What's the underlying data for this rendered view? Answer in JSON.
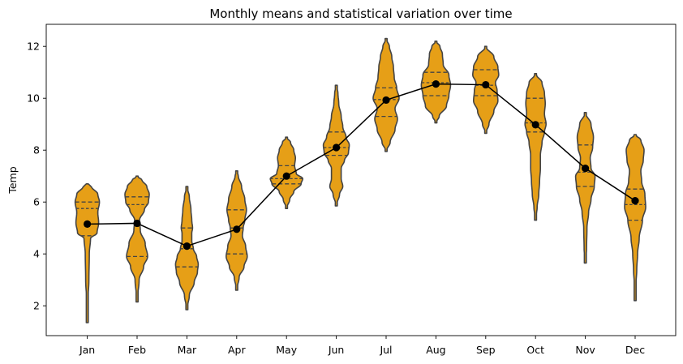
{
  "chart_data": {
    "type": "violin",
    "title": "Monthly means and statistical variation over time",
    "xlabel": "",
    "ylabel": "Temp",
    "ylim": [
      0.85,
      12.85
    ],
    "yticks": [
      2,
      4,
      6,
      8,
      10,
      12
    ],
    "grid": false,
    "colors": {
      "violin_fill": "#E69F17",
      "violin_edge": "#444444",
      "mean_line": "#000000"
    },
    "categories": [
      "Jan",
      "Feb",
      "Mar",
      "Apr",
      "May",
      "Jun",
      "Jul",
      "Aug",
      "Sep",
      "Oct",
      "Nov",
      "Dec"
    ],
    "means": [
      5.15,
      5.18,
      4.3,
      4.95,
      7.0,
      8.1,
      9.93,
      10.55,
      10.52,
      8.98,
      7.3,
      6.05
    ],
    "quartiles": [
      [
        4.7,
        5.75,
        6.0
      ],
      [
        3.9,
        5.9,
        6.2
      ],
      [
        3.5,
        4.2,
        5.0
      ],
      [
        4.0,
        5.0,
        5.7
      ],
      [
        6.7,
        6.9,
        7.4
      ],
      [
        7.8,
        8.1,
        8.7
      ],
      [
        9.3,
        9.95,
        10.4
      ],
      [
        10.1,
        10.6,
        11.0
      ],
      [
        10.1,
        10.5,
        11.1
      ],
      [
        8.7,
        9.05,
        10.0
      ],
      [
        6.6,
        7.15,
        8.2
      ],
      [
        5.3,
        5.9,
        6.5
      ]
    ],
    "ranges": [
      [
        1.35,
        6.7
      ],
      [
        2.15,
        7.0
      ],
      [
        1.85,
        6.6
      ],
      [
        2.6,
        7.2
      ],
      [
        5.75,
        8.5
      ],
      [
        5.85,
        10.5
      ],
      [
        7.95,
        12.3
      ],
      [
        9.05,
        12.2
      ],
      [
        8.65,
        12.0
      ],
      [
        5.3,
        10.95
      ],
      [
        3.65,
        9.45
      ],
      [
        2.2,
        8.6
      ]
    ],
    "density_half_widths": [
      [
        [
          1.35,
          0
        ],
        [
          2.0,
          0.3
        ],
        [
          3.0,
          2.0
        ],
        [
          4.0,
          2.5
        ],
        [
          4.6,
          4
        ],
        [
          4.8,
          12
        ],
        [
          5.2,
          14
        ],
        [
          5.6,
          13
        ],
        [
          6.0,
          15
        ],
        [
          6.3,
          13
        ],
        [
          6.6,
          5
        ],
        [
          6.7,
          0
        ]
      ],
      [
        [
          2.15,
          0
        ],
        [
          3.0,
          2.5
        ],
        [
          3.5,
          8
        ],
        [
          3.9,
          13
        ],
        [
          4.4,
          10
        ],
        [
          4.9,
          4
        ],
        [
          5.3,
          3
        ],
        [
          5.7,
          9
        ],
        [
          6.0,
          14
        ],
        [
          6.3,
          15
        ],
        [
          6.6,
          12
        ],
        [
          6.85,
          6
        ],
        [
          7.0,
          0
        ]
      ],
      [
        [
          1.85,
          0
        ],
        [
          2.4,
          3
        ],
        [
          2.9,
          9
        ],
        [
          3.3,
          13
        ],
        [
          3.6,
          14
        ],
        [
          3.9,
          12
        ],
        [
          4.2,
          8
        ],
        [
          4.5,
          6
        ],
        [
          4.8,
          6
        ],
        [
          5.0,
          7
        ],
        [
          5.3,
          6
        ],
        [
          5.7,
          5
        ],
        [
          6.2,
          3
        ],
        [
          6.6,
          0
        ]
      ],
      [
        [
          2.6,
          0
        ],
        [
          3.1,
          3
        ],
        [
          3.5,
          9
        ],
        [
          3.9,
          13
        ],
        [
          4.3,
          11
        ],
        [
          4.7,
          7
        ],
        [
          5.0,
          8
        ],
        [
          5.3,
          10
        ],
        [
          5.7,
          12
        ],
        [
          6.1,
          10
        ],
        [
          6.6,
          6
        ],
        [
          7.0,
          2
        ],
        [
          7.2,
          0
        ]
      ],
      [
        [
          5.75,
          0
        ],
        [
          6.1,
          4
        ],
        [
          6.4,
          9
        ],
        [
          6.7,
          18
        ],
        [
          6.9,
          20
        ],
        [
          7.1,
          12
        ],
        [
          7.4,
          10
        ],
        [
          7.7,
          11
        ],
        [
          8.0,
          9
        ],
        [
          8.3,
          5
        ],
        [
          8.5,
          0
        ]
      ],
      [
        [
          5.85,
          0
        ],
        [
          6.3,
          4
        ],
        [
          6.6,
          8
        ],
        [
          6.9,
          6
        ],
        [
          7.3,
          6
        ],
        [
          7.6,
          10
        ],
        [
          7.9,
          15
        ],
        [
          8.2,
          16
        ],
        [
          8.5,
          12
        ],
        [
          8.9,
          8
        ],
        [
          9.3,
          6
        ],
        [
          9.8,
          3
        ],
        [
          10.2,
          2
        ],
        [
          10.5,
          0
        ]
      ],
      [
        [
          7.95,
          0
        ],
        [
          8.3,
          5
        ],
        [
          8.8,
          11
        ],
        [
          9.2,
          14
        ],
        [
          9.6,
          11
        ],
        [
          10.0,
          16
        ],
        [
          10.4,
          13
        ],
        [
          10.8,
          10
        ],
        [
          11.2,
          9
        ],
        [
          11.6,
          7
        ],
        [
          12.0,
          4
        ],
        [
          12.3,
          0
        ]
      ],
      [
        [
          9.05,
          0
        ],
        [
          9.3,
          4
        ],
        [
          9.7,
          13
        ],
        [
          10.1,
          16
        ],
        [
          10.5,
          18
        ],
        [
          10.9,
          16
        ],
        [
          11.3,
          9
        ],
        [
          11.7,
          8
        ],
        [
          12.0,
          5
        ],
        [
          12.2,
          0
        ]
      ],
      [
        [
          8.65,
          0
        ],
        [
          9.0,
          4
        ],
        [
          9.5,
          10
        ],
        [
          9.9,
          15
        ],
        [
          10.3,
          14
        ],
        [
          10.6,
          12
        ],
        [
          10.9,
          16
        ],
        [
          11.2,
          15
        ],
        [
          11.6,
          10
        ],
        [
          12.0,
          0
        ]
      ],
      [
        [
          5.3,
          0
        ],
        [
          5.8,
          2
        ],
        [
          6.3,
          4
        ],
        [
          6.8,
          5
        ],
        [
          7.3,
          6
        ],
        [
          7.8,
          6
        ],
        [
          8.3,
          8
        ],
        [
          8.7,
          11
        ],
        [
          9.0,
          13
        ],
        [
          9.4,
          11
        ],
        [
          9.8,
          12
        ],
        [
          10.2,
          11
        ],
        [
          10.6,
          8
        ],
        [
          10.95,
          0
        ]
      ],
      [
        [
          3.65,
          0
        ],
        [
          4.2,
          1.5
        ],
        [
          5.0,
          2
        ],
        [
          5.6,
          4
        ],
        [
          6.1,
          7
        ],
        [
          6.6,
          11
        ],
        [
          7.0,
          12
        ],
        [
          7.3,
          7
        ],
        [
          7.7,
          6
        ],
        [
          8.1,
          9
        ],
        [
          8.5,
          10
        ],
        [
          9.0,
          7
        ],
        [
          9.45,
          0
        ]
      ],
      [
        [
          2.2,
          0
        ],
        [
          2.8,
          1
        ],
        [
          3.4,
          2
        ],
        [
          4.0,
          3
        ],
        [
          4.6,
          5
        ],
        [
          5.3,
          9
        ],
        [
          5.8,
          13
        ],
        [
          6.3,
          12
        ],
        [
          6.8,
          8
        ],
        [
          7.2,
          7
        ],
        [
          7.6,
          10
        ],
        [
          8.0,
          11
        ],
        [
          8.4,
          7
        ],
        [
          8.6,
          0
        ]
      ]
    ]
  }
}
